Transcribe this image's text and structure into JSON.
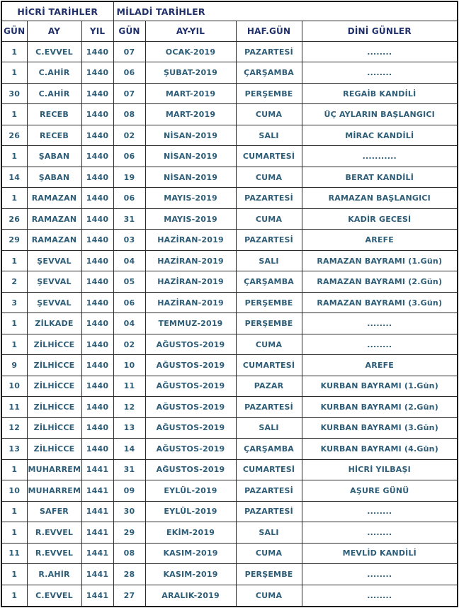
{
  "table": {
    "group_headers": [
      {
        "label": "HİCRİ TARİHLER",
        "colspan": 3
      },
      {
        "label": "MİLADİ TARİHLER",
        "colspan": 4
      }
    ],
    "columns": [
      "GÜN",
      "AY",
      "YIL",
      "GÜN",
      "AY-YIL",
      "HAF.GÜN",
      "DİNİ GÜNLER"
    ],
    "rows": [
      [
        "1",
        "C.EVVEL",
        "1440",
        "07",
        "OCAK-2019",
        "PAZARTESİ",
        "........"
      ],
      [
        "1",
        "C.AHİR",
        "1440",
        "06",
        "ŞUBAT-2019",
        "ÇARŞAMBA",
        "........"
      ],
      [
        "30",
        "C.AHİR",
        "1440",
        "07",
        "MART-2019",
        "PERŞEMBE",
        "REGAİB KANDİLİ"
      ],
      [
        "1",
        "RECEB",
        "1440",
        "08",
        "MART-2019",
        "CUMA",
        "ÜÇ AYLARIN BAŞLANGICI"
      ],
      [
        "26",
        "RECEB",
        "1440",
        "02",
        "NİSAN-2019",
        "SALI",
        "MİRAC KANDİLİ"
      ],
      [
        "1",
        "ŞABAN",
        "1440",
        "06",
        "NİSAN-2019",
        "CUMARTESİ",
        "..........."
      ],
      [
        "14",
        "ŞABAN",
        "1440",
        "19",
        "NİSAN-2019",
        "CUMA",
        "BERAT KANDİLİ"
      ],
      [
        "1",
        "RAMAZAN",
        "1440",
        "06",
        "MAYIS-2019",
        "PAZARTESİ",
        "RAMAZAN BAŞLANGICI"
      ],
      [
        "26",
        "RAMAZAN",
        "1440",
        "31",
        "MAYIS-2019",
        "CUMA",
        "KADİR GECESİ"
      ],
      [
        "29",
        "RAMAZAN",
        "1440",
        "03",
        "HAZİRAN-2019",
        "PAZARTESİ",
        "AREFE"
      ],
      [
        "1",
        "ŞEVVAL",
        "1440",
        "04",
        "HAZİRAN-2019",
        "SALI",
        "RAMAZAN BAYRAMI (1.Gün)"
      ],
      [
        "2",
        "ŞEVVAL",
        "1440",
        "05",
        "HAZİRAN-2019",
        "ÇARŞAMBA",
        "RAMAZAN BAYRAMI (2.Gün)"
      ],
      [
        "3",
        "ŞEVVAL",
        "1440",
        "06",
        "HAZİRAN-2019",
        "PERŞEMBE",
        "RAMAZAN BAYRAMI (3.Gün)"
      ],
      [
        "1",
        "ZİLKADE",
        "1440",
        "04",
        "TEMMUZ-2019",
        "PERŞEMBE",
        "........"
      ],
      [
        "1",
        "ZİLHİCCE",
        "1440",
        "02",
        "AĞUSTOS-2019",
        "CUMA",
        "........"
      ],
      [
        "9",
        "ZİLHİCCE",
        "1440",
        "10",
        "AĞUSTOS-2019",
        "CUMARTESİ",
        "AREFE"
      ],
      [
        "10",
        "ZİLHİCCE",
        "1440",
        "11",
        "AĞUSTOS-2019",
        "PAZAR",
        "KURBAN BAYRAMI (1.Gün)"
      ],
      [
        "11",
        "ZİLHİCCE",
        "1440",
        "12",
        "AĞUSTOS-2019",
        "PAZARTESİ",
        "KURBAN BAYRAMI (2.Gün)"
      ],
      [
        "12",
        "ZİLHİCCE",
        "1440",
        "13",
        "AĞUSTOS-2019",
        "SALI",
        "KURBAN BAYRAMI (3.Gün)"
      ],
      [
        "13",
        "ZİLHİCCE",
        "1440",
        "14",
        "AĞUSTOS-2019",
        "ÇARŞAMBA",
        "KURBAN BAYRAMI (4.Gün)"
      ],
      [
        "1",
        "MUHARREM",
        "1441",
        "31",
        "AĞUSTOS-2019",
        "CUMARTESİ",
        "HİCRİ YILBAŞI"
      ],
      [
        "10",
        "MUHARREM",
        "1441",
        "09",
        "EYLÜL-2019",
        "PAZARTESİ",
        "AŞURE GÜNÜ"
      ],
      [
        "1",
        "SAFER",
        "1441",
        "30",
        "EYLÜL-2019",
        "PAZARTESİ",
        "........"
      ],
      [
        "1",
        "R.EVVEL",
        "1441",
        "29",
        "EKİM-2019",
        "SALI",
        "........"
      ],
      [
        "11",
        "R.EVVEL",
        "1441",
        "08",
        "KASIM-2019",
        "CUMA",
        "MEVLİD KANDİLİ"
      ],
      [
        "1",
        "R.AHİR",
        "1441",
        "28",
        "KASIM-2019",
        "PERŞEMBE",
        "........"
      ],
      [
        "1",
        "C.EVVEL",
        "1441",
        "27",
        "ARALIK-2019",
        "CUMA",
        "........"
      ]
    ],
    "colors": {
      "header_text": "#20306b",
      "body_text": "#2e5d78",
      "border": "#1c1c1c",
      "background": "#ffffff"
    }
  }
}
